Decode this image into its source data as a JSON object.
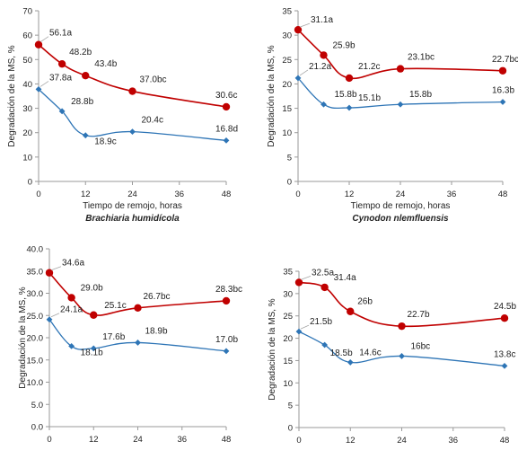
{
  "chart_data": [
    {
      "type": "line",
      "xlabel": "Tiempo de remojo, horas",
      "ylabel": "Degradación de la MS, %",
      "subtitle": "Brachiaria humidícola",
      "xlim": [
        0,
        48
      ],
      "ylim": [
        0,
        70
      ],
      "xticks": [
        "0",
        "12",
        "24",
        "36",
        "48"
      ],
      "yticks": [
        "0",
        "10",
        "20",
        "30",
        "40",
        "50",
        "60",
        "70"
      ],
      "grid": false,
      "x": [
        0,
        6,
        12,
        24,
        48
      ],
      "series": [
        {
          "color": "#c00000",
          "marker": "circle",
          "values": [
            56.1,
            48.2,
            43.4,
            37.0,
            30.6
          ],
          "labels": [
            "56.1a",
            "48.2b",
            "43.4b",
            "37.0bc",
            "30.6c"
          ]
        },
        {
          "color": "#2e75b6",
          "marker": "diamond",
          "values": [
            37.8,
            28.8,
            18.9,
            20.4,
            16.8
          ],
          "labels": [
            "37.8a",
            "28.8b",
            "18.9c",
            "20.4c",
            "16.8d"
          ]
        }
      ]
    },
    {
      "type": "line",
      "xlabel": "Tiempo de remojo, horas",
      "ylabel": "Degradación de la MS, %",
      "subtitle": "Cynodon nlemfluensis",
      "xlim": [
        0,
        48
      ],
      "ylim": [
        0,
        35
      ],
      "xticks": [
        "0",
        "12",
        "24",
        "36",
        "48"
      ],
      "yticks": [
        "0",
        "5",
        "10",
        "15",
        "20",
        "25",
        "30",
        "35"
      ],
      "grid": false,
      "x": [
        0,
        6,
        12,
        24,
        48
      ],
      "series": [
        {
          "color": "#c00000",
          "marker": "circle",
          "values": [
            31.1,
            25.9,
            21.2,
            23.1,
            22.7
          ],
          "labels": [
            "31.1a",
            "25.9b",
            "21.2c",
            "23.1bc",
            "22.7bc"
          ]
        },
        {
          "color": "#2e75b6",
          "marker": "diamond",
          "values": [
            21.2,
            15.8,
            15.1,
            15.8,
            16.3
          ],
          "labels": [
            "21.2a",
            "15.8b",
            "15.1b",
            "15.8b",
            "16.3b"
          ]
        }
      ]
    },
    {
      "type": "line",
      "xlabel": "",
      "ylabel": "Degradación de la MS, %",
      "subtitle": "",
      "xlim": [
        0,
        48
      ],
      "ylim": [
        0,
        40
      ],
      "xticks": [
        "0",
        "12",
        "24",
        "36",
        "48"
      ],
      "yticks": [
        "0.0",
        "5.0",
        "10.0",
        "15.0",
        "20.0",
        "25.0",
        "30.0",
        "35.0",
        "40.0"
      ],
      "grid": false,
      "x": [
        0,
        6,
        12,
        24,
        48
      ],
      "series": [
        {
          "color": "#c00000",
          "marker": "circle",
          "values": [
            34.6,
            29.0,
            25.1,
            26.7,
            28.3
          ],
          "labels": [
            "34.6a",
            "29.0b",
            "25.1c",
            "26.7bc",
            "28.3bc"
          ]
        },
        {
          "color": "#2e75b6",
          "marker": "diamond",
          "values": [
            24.1,
            18.1,
            17.6,
            18.9,
            17.0
          ],
          "labels": [
            "24.1a",
            "18.1b",
            "17.6b",
            "18.9b",
            "17.0b"
          ]
        }
      ]
    },
    {
      "type": "line",
      "xlabel": "",
      "ylabel": "Degradación de la MS, %",
      "subtitle": "",
      "xlim": [
        0,
        48
      ],
      "ylim": [
        0,
        35
      ],
      "xticks": [
        "0",
        "12",
        "24",
        "36",
        "48"
      ],
      "yticks": [
        "0",
        "5",
        "10",
        "15",
        "20",
        "25",
        "30",
        "35"
      ],
      "grid": false,
      "x": [
        0,
        6,
        12,
        24,
        48
      ],
      "series": [
        {
          "color": "#c00000",
          "marker": "circle",
          "values": [
            32.5,
            31.4,
            26.0,
            22.7,
            24.5
          ],
          "labels": [
            "32.5a",
            "31.4a",
            "26b",
            "22.7b",
            "24.5b"
          ]
        },
        {
          "color": "#2e75b6",
          "marker": "diamond",
          "values": [
            21.5,
            18.5,
            14.6,
            16.0,
            13.8
          ],
          "labels": [
            "21.5b",
            "18.5b",
            "14.6c",
            "16bc",
            "13.8c"
          ]
        }
      ]
    }
  ]
}
